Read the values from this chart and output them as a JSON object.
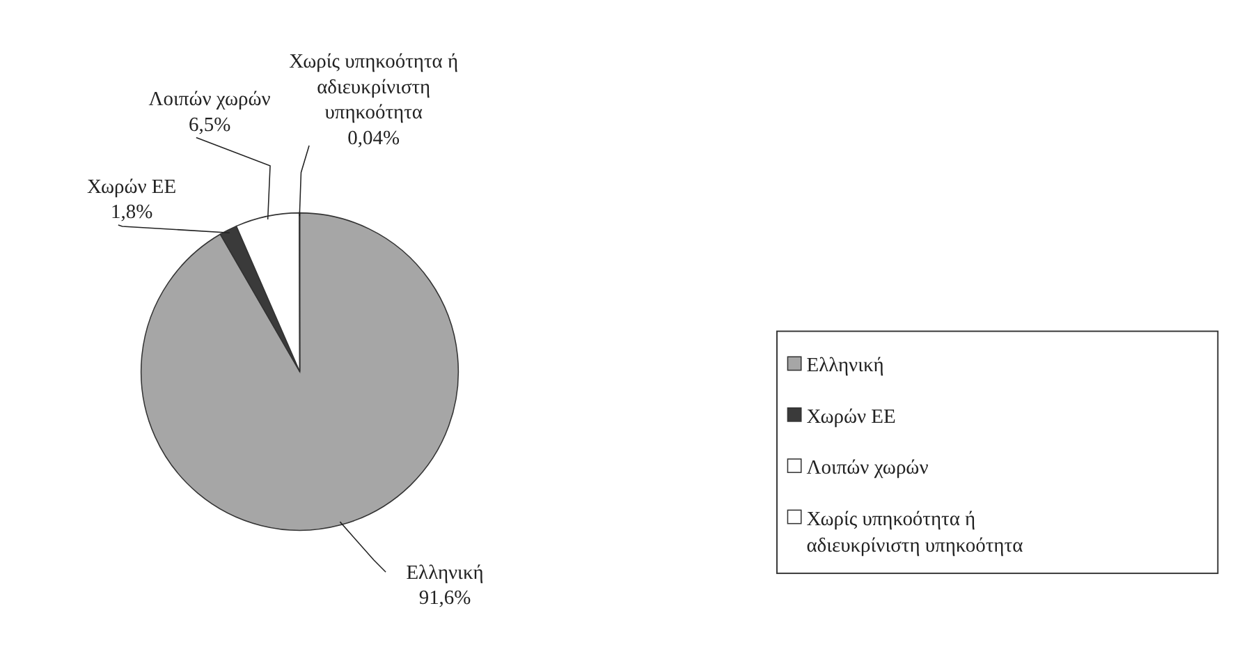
{
  "chart_data": {
    "type": "pie",
    "categories": [
      "Ελληνική",
      "Χωρών ΕΕ",
      "Λοιπών χωρών",
      "Χωρίς υπηκοότητα ή αδιευκρίνιστη υπηκοότητα"
    ],
    "values": [
      91.6,
      1.8,
      6.5,
      0.04
    ],
    "colors": [
      "#a6a6a6",
      "#3a3a3a",
      "#ffffff",
      "#ffffff"
    ],
    "value_labels": [
      "91,6%",
      "1,8%",
      "6,5%",
      "0,04%"
    ],
    "legend": "right"
  }
}
